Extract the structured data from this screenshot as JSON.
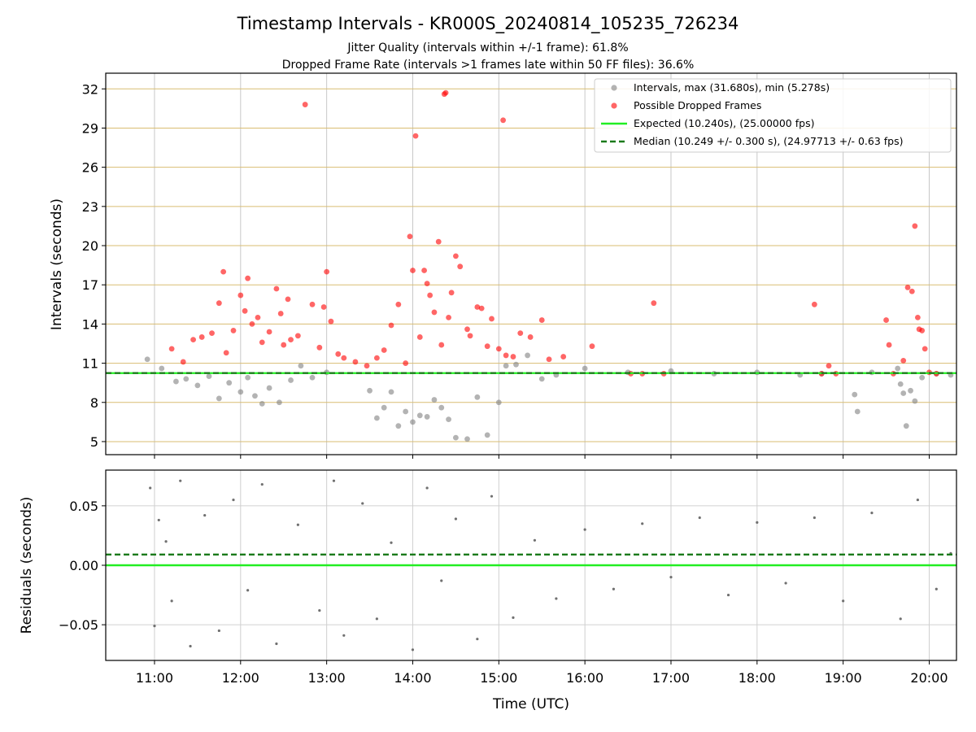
{
  "figure": {
    "title": "Timestamp Intervals - KR000S_20240814_105235_726234",
    "subtitle1": "Jitter Quality (intervals within +/-1 frame): 61.8%",
    "subtitle2": "Dropped Frame Rate (intervals >1 frames late within 50 FF files): 36.6%"
  },
  "chart_data": [
    {
      "type": "scatter",
      "panel": "top",
      "ylabel": "Intervals (seconds)",
      "xlabel": "",
      "ylim": [
        4,
        33.2
      ],
      "xlim": [
        "10:26",
        "20:19"
      ],
      "yticks": [
        5,
        8,
        11,
        14,
        17,
        20,
        23,
        26,
        29,
        32
      ],
      "ytick_labels": [
        "5",
        "8",
        "11",
        "14",
        "17",
        "20",
        "23",
        "26",
        "29",
        "32"
      ],
      "grid": "on",
      "grid_colors": {
        "horizontal": "#d9bd72",
        "vertical": "#c8c8c8"
      },
      "legend_position": "top-right",
      "legend": [
        {
          "label": "Intervals, max (31.680s), min (5.278s)",
          "marker": "gray-dot"
        },
        {
          "label": "Possible Dropped Frames",
          "marker": "red-dot"
        },
        {
          "label": "Expected (10.240s), (25.00000 fps)",
          "marker": "green-line"
        },
        {
          "label": "Median (10.249 +/- 0.300 s), (24.97713 +/- 0.63 fps)",
          "marker": "darkgreen-dashed"
        }
      ],
      "reference_lines": {
        "expected": 10.24,
        "median": 10.249
      },
      "series": [
        {
          "name": "Intervals, max (31.680s), min (5.278s)",
          "color": "#808080",
          "points": [
            [
              "10:55",
              11.3
            ],
            [
              "11:05",
              10.6
            ],
            [
              "11:15",
              9.6
            ],
            [
              "11:22",
              9.8
            ],
            [
              "11:30",
              9.3
            ],
            [
              "11:38",
              10.0
            ],
            [
              "11:45",
              8.3
            ],
            [
              "11:52",
              9.5
            ],
            [
              "12:00",
              8.8
            ],
            [
              "12:05",
              9.9
            ],
            [
              "12:10",
              8.5
            ],
            [
              "12:15",
              7.9
            ],
            [
              "12:20",
              9.1
            ],
            [
              "12:27",
              8.0
            ],
            [
              "12:35",
              9.7
            ],
            [
              "12:42",
              10.8
            ],
            [
              "12:50",
              9.9
            ],
            [
              "13:00",
              10.3
            ],
            [
              "13:30",
              8.9
            ],
            [
              "13:35",
              6.8
            ],
            [
              "13:40",
              7.6
            ],
            [
              "13:45",
              8.8
            ],
            [
              "13:50",
              6.2
            ],
            [
              "13:55",
              7.3
            ],
            [
              "14:00",
              6.5
            ],
            [
              "14:05",
              7.0
            ],
            [
              "14:10",
              6.9
            ],
            [
              "14:15",
              8.2
            ],
            [
              "14:20",
              7.6
            ],
            [
              "14:25",
              6.7
            ],
            [
              "14:30",
              5.3
            ],
            [
              "14:38",
              5.2
            ],
            [
              "14:45",
              8.4
            ],
            [
              "14:52",
              5.5
            ],
            [
              "15:00",
              8.0
            ],
            [
              "15:05",
              10.8
            ],
            [
              "15:12",
              10.9
            ],
            [
              "15:20",
              11.6
            ],
            [
              "15:30",
              9.8
            ],
            [
              "15:40",
              10.1
            ],
            [
              "16:00",
              10.6
            ],
            [
              "16:30",
              10.3
            ],
            [
              "17:00",
              10.4
            ],
            [
              "17:30",
              10.2
            ],
            [
              "18:00",
              10.3
            ],
            [
              "18:30",
              10.1
            ],
            [
              "18:45",
              10.2
            ],
            [
              "19:08",
              8.6
            ],
            [
              "19:10",
              7.3
            ],
            [
              "19:20",
              10.3
            ],
            [
              "19:38",
              10.6
            ],
            [
              "19:40",
              9.4
            ],
            [
              "19:42",
              8.7
            ],
            [
              "19:44",
              6.2
            ],
            [
              "19:47",
              8.9
            ],
            [
              "19:50",
              8.1
            ],
            [
              "19:55",
              9.9
            ],
            [
              "20:05",
              10.2
            ],
            [
              "20:15",
              10.1
            ]
          ]
        },
        {
          "name": "Possible Dropped Frames",
          "color": "#ff0000",
          "points": [
            [
              "11:12",
              12.1
            ],
            [
              "11:20",
              11.1
            ],
            [
              "11:27",
              12.8
            ],
            [
              "11:33",
              13.0
            ],
            [
              "11:40",
              13.3
            ],
            [
              "11:45",
              15.6
            ],
            [
              "11:48",
              18.0
            ],
            [
              "11:50",
              11.8
            ],
            [
              "11:55",
              13.5
            ],
            [
              "12:00",
              16.2
            ],
            [
              "12:03",
              15.0
            ],
            [
              "12:05",
              17.5
            ],
            [
              "12:08",
              14.0
            ],
            [
              "12:12",
              14.5
            ],
            [
              "12:15",
              12.6
            ],
            [
              "12:20",
              13.4
            ],
            [
              "12:25",
              16.7
            ],
            [
              "12:28",
              14.8
            ],
            [
              "12:30",
              12.4
            ],
            [
              "12:33",
              15.9
            ],
            [
              "12:35",
              12.8
            ],
            [
              "12:40",
              13.1
            ],
            [
              "12:45",
              30.8
            ],
            [
              "12:50",
              15.5
            ],
            [
              "12:55",
              12.2
            ],
            [
              "12:58",
              15.3
            ],
            [
              "13:00",
              18.0
            ],
            [
              "13:03",
              14.2
            ],
            [
              "13:08",
              11.7
            ],
            [
              "13:12",
              11.4
            ],
            [
              "13:20",
              11.1
            ],
            [
              "13:28",
              10.8
            ],
            [
              "13:35",
              11.4
            ],
            [
              "13:40",
              12.0
            ],
            [
              "13:45",
              13.9
            ],
            [
              "13:50",
              15.5
            ],
            [
              "13:55",
              11.0
            ],
            [
              "13:58",
              20.7
            ],
            [
              "14:00",
              18.1
            ],
            [
              "14:02",
              28.4
            ],
            [
              "14:05",
              13.0
            ],
            [
              "14:08",
              18.1
            ],
            [
              "14:10",
              17.1
            ],
            [
              "14:12",
              16.2
            ],
            [
              "14:15",
              14.9
            ],
            [
              "14:18",
              20.3
            ],
            [
              "14:20",
              12.4
            ],
            [
              "14:22",
              31.6
            ],
            [
              "14:23",
              31.7
            ],
            [
              "14:25",
              14.5
            ],
            [
              "14:27",
              16.4
            ],
            [
              "14:30",
              19.2
            ],
            [
              "14:33",
              18.4
            ],
            [
              "14:38",
              13.6
            ],
            [
              "14:40",
              13.1
            ],
            [
              "14:45",
              15.3
            ],
            [
              "14:48",
              15.2
            ],
            [
              "14:52",
              12.3
            ],
            [
              "14:55",
              14.4
            ],
            [
              "15:00",
              12.1
            ],
            [
              "15:03",
              29.6
            ],
            [
              "15:05",
              11.6
            ],
            [
              "15:10",
              11.5
            ],
            [
              "15:15",
              13.3
            ],
            [
              "15:22",
              13.0
            ],
            [
              "15:30",
              14.3
            ],
            [
              "15:35",
              11.3
            ],
            [
              "15:45",
              11.5
            ],
            [
              "16:05",
              12.3
            ],
            [
              "16:32",
              10.2
            ],
            [
              "16:40",
              10.2
            ],
            [
              "16:48",
              15.6
            ],
            [
              "16:55",
              10.2
            ],
            [
              "18:40",
              15.5
            ],
            [
              "18:45",
              10.2
            ],
            [
              "18:50",
              10.8
            ],
            [
              "18:55",
              10.2
            ],
            [
              "19:30",
              14.3
            ],
            [
              "19:32",
              12.4
            ],
            [
              "19:35",
              10.2
            ],
            [
              "19:42",
              11.2
            ],
            [
              "19:45",
              16.8
            ],
            [
              "19:48",
              16.5
            ],
            [
              "19:50",
              21.5
            ],
            [
              "19:52",
              14.5
            ],
            [
              "19:53",
              13.6
            ],
            [
              "19:55",
              13.5
            ],
            [
              "19:57",
              12.1
            ],
            [
              "20:00",
              10.3
            ],
            [
              "20:05",
              10.2
            ]
          ]
        }
      ]
    },
    {
      "type": "scatter",
      "panel": "bottom",
      "ylabel": "Residuals (seconds)",
      "xlabel": "Time (UTC)",
      "ylim": [
        -0.08,
        0.08
      ],
      "yticks": [
        -0.05,
        0.0,
        0.05
      ],
      "ytick_labels": [
        "−0.05",
        "0.00",
        "0.05"
      ],
      "xticks": [
        "11:00",
        "12:00",
        "13:00",
        "14:00",
        "15:00",
        "16:00",
        "17:00",
        "18:00",
        "19:00",
        "20:00"
      ],
      "grid": "on",
      "reference_lines": {
        "expected": 0.0,
        "median": 0.009
      },
      "series": [
        {
          "name": "",
          "color": "#707070",
          "points": [
            [
              "10:57",
              0.065
            ],
            [
              "11:00",
              -0.051
            ],
            [
              "11:03",
              0.038
            ],
            [
              "11:08",
              0.02
            ],
            [
              "11:12",
              -0.03
            ],
            [
              "11:18",
              0.071
            ],
            [
              "11:25",
              -0.068
            ],
            [
              "11:35",
              0.042
            ],
            [
              "11:45",
              -0.055
            ],
            [
              "11:55",
              0.055
            ],
            [
              "12:05",
              -0.021
            ],
            [
              "12:15",
              0.068
            ],
            [
              "12:25",
              -0.066
            ],
            [
              "12:40",
              0.034
            ],
            [
              "12:55",
              -0.038
            ],
            [
              "13:05",
              0.071
            ],
            [
              "13:12",
              -0.059
            ],
            [
              "13:25",
              0.052
            ],
            [
              "13:35",
              -0.045
            ],
            [
              "13:45",
              0.019
            ],
            [
              "14:00",
              -0.071
            ],
            [
              "14:10",
              0.065
            ],
            [
              "14:20",
              -0.013
            ],
            [
              "14:30",
              0.039
            ],
            [
              "14:45",
              -0.062
            ],
            [
              "14:55",
              0.058
            ],
            [
              "15:10",
              -0.044
            ],
            [
              "15:25",
              0.021
            ],
            [
              "15:40",
              -0.028
            ],
            [
              "16:00",
              0.03
            ],
            [
              "16:20",
              -0.02
            ],
            [
              "16:40",
              0.035
            ],
            [
              "17:00",
              -0.01
            ],
            [
              "17:20",
              0.04
            ],
            [
              "17:40",
              -0.025
            ],
            [
              "18:00",
              0.036
            ],
            [
              "18:20",
              -0.015
            ],
            [
              "18:40",
              0.04
            ],
            [
              "19:00",
              -0.03
            ],
            [
              "19:20",
              0.044
            ],
            [
              "19:40",
              -0.045
            ],
            [
              "19:52",
              0.055
            ],
            [
              "20:05",
              -0.02
            ],
            [
              "20:15",
              0.01
            ]
          ]
        }
      ]
    }
  ]
}
